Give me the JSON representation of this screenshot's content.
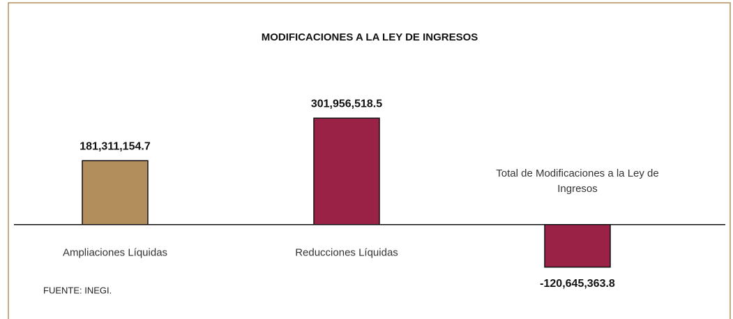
{
  "chart_data": {
    "type": "bar",
    "title": "MODIFICACIONES A LA LEY DE INGRESOS",
    "categories": [
      "Ampliaciones Líquidas",
      "Reducciones Líquidas",
      "Total de Modificaciones a la Ley de Ingresos"
    ],
    "values": [
      181311154.7,
      301956518.5,
      -120645363.8
    ],
    "value_labels": [
      "181,311,154.7",
      "301,956,518.5",
      "-120,645,363.8"
    ],
    "colors": [
      "#b38e5d",
      "#9b2247",
      "#9b2247"
    ],
    "ylim": [
      -250000000,
      350000000
    ],
    "note": "FUENTE: INEGI."
  }
}
